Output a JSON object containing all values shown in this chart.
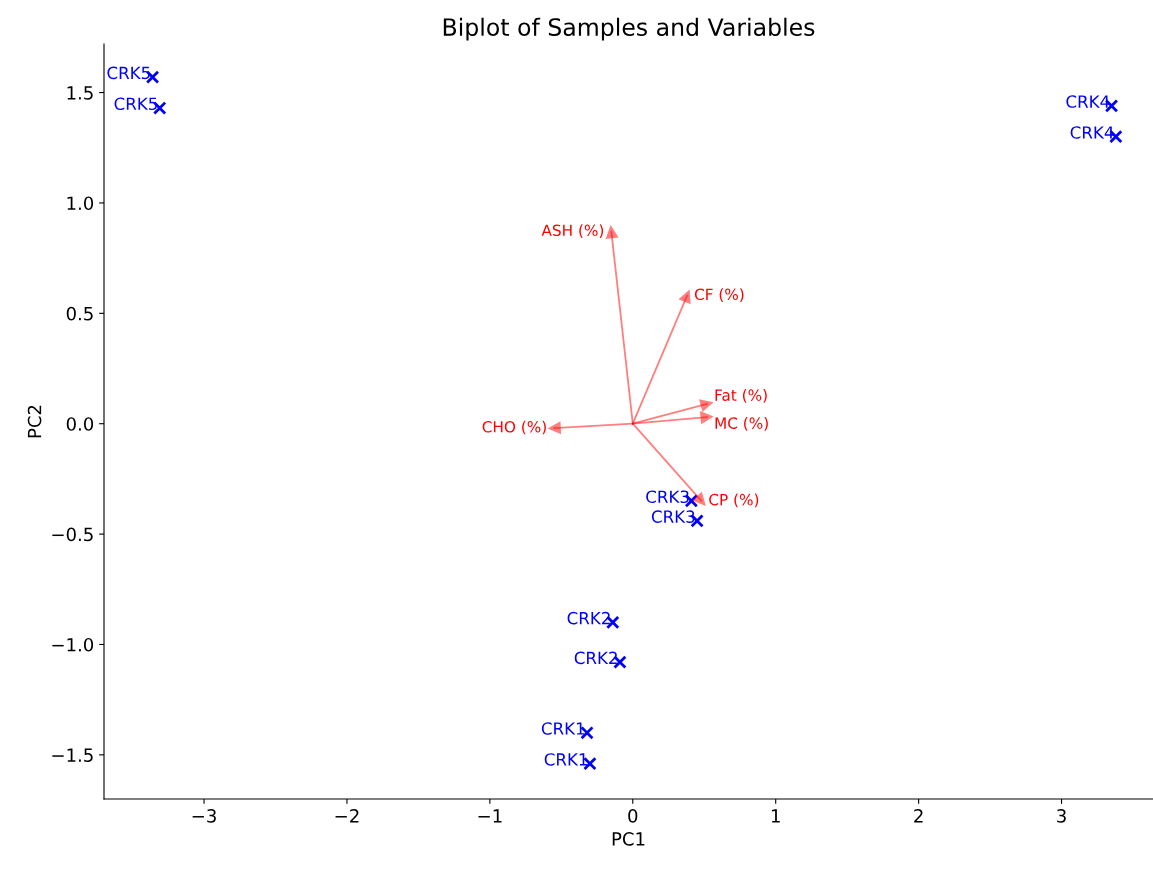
{
  "chart_data": {
    "type": "scatter",
    "title": "Biplot of Samples and Variables",
    "xlabel": "PC1",
    "ylabel": "PC2",
    "xlim": [
      -3.7,
      3.64
    ],
    "ylim": [
      -1.7,
      1.72
    ],
    "xticks": [
      -3,
      -2,
      -1,
      0,
      1,
      2,
      3
    ],
    "yticks": [
      -1.5,
      {
        "value": -1,
        "label": "−1.0"
      },
      -0.5,
      {
        "value": 0,
        "label": "0.0"
      },
      0.5,
      {
        "value": 1,
        "label": "1.0"
      },
      1.5
    ],
    "grid": false,
    "series": [
      {
        "color": "#0000ff",
        "marker": "cross",
        "x": [
          -3.36,
          -3.31,
          3.35,
          3.38,
          0.41,
          0.45,
          -0.14,
          -0.09,
          -0.32,
          -0.3
        ],
        "values": [
          1.57,
          1.43,
          1.44,
          1.3,
          -0.35,
          -0.44,
          -0.9,
          -1.08,
          -1.4,
          -1.54
        ],
        "value_labels": [
          "CRK5",
          "CRK5",
          "CRK4",
          "CRK4",
          "CRK3",
          "CRK3",
          "CRK2",
          "CRK2",
          "CRK1",
          "CRK1"
        ]
      },
      {
        "color": "#ff0000",
        "marker": "triangle",
        "x": [
          -0.15,
          0.38,
          0.52,
          0.52,
          -0.55,
          0.48
        ],
        "values": [
          0.87,
          0.58,
          0.09,
          0.03,
          -0.02,
          -0.35
        ],
        "value_labels": [
          "ASH (%)",
          "CF (%)",
          "Fat (%)",
          "MC (%)",
          "CHO (%)",
          "CP (%)"
        ]
      }
    ]
  }
}
